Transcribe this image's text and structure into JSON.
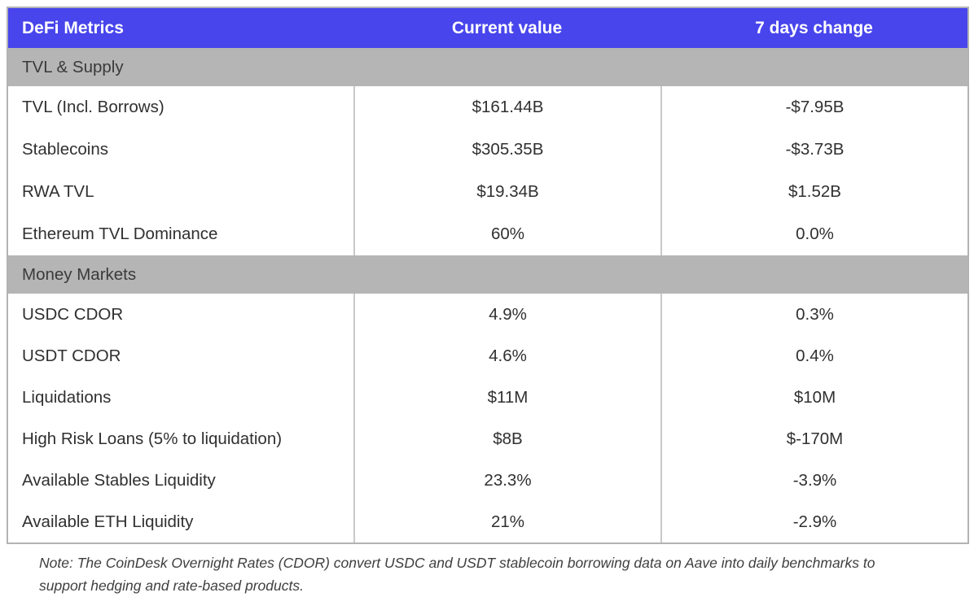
{
  "colors": {
    "header_bg": "#4845ec",
    "header_text": "#ffffff",
    "section_bg": "#b5b5b5",
    "row_text": "#303030",
    "column_divider": "#c9c9c9",
    "outer_border": "#b3b3b3"
  },
  "table": {
    "header": {
      "metric": "DeFi Metrics",
      "current": "Current value",
      "change": "7 days change"
    },
    "sections": [
      {
        "title": "TVL & Supply",
        "rows": [
          {
            "label": "TVL (Incl. Borrows)",
            "current": "$161.44B",
            "change": "-$7.95B"
          },
          {
            "label": "Stablecoins",
            "current": "$305.35B",
            "change": "-$3.73B"
          },
          {
            "label": "RWA TVL",
            "current": "$19.34B",
            "change": "$1.52B"
          },
          {
            "label": "Ethereum TVL Dominance",
            "current": "60%",
            "change": "0.0%"
          }
        ]
      },
      {
        "title": "Money Markets",
        "rows": [
          {
            "label": "USDC CDOR",
            "current": "4.9%",
            "change": "0.3%"
          },
          {
            "label": "USDT CDOR",
            "current": "4.6%",
            "change": "0.4%"
          },
          {
            "label": "Liquidations",
            "current": "$11M",
            "change": "$10M"
          },
          {
            "label": "High Risk Loans (5% to liquidation)",
            "current": "$8B",
            "change": "$-170M"
          },
          {
            "label": "Available Stables Liquidity",
            "current": "23.3%",
            "change": "-3.9%"
          },
          {
            "label": "Available ETH Liquidity",
            "current": "21%",
            "change": "-2.9%"
          }
        ]
      }
    ]
  },
  "note": "Note: The CoinDesk Overnight Rates (CDOR) convert USDC and USDT stablecoin borrowing data on Aave into daily benchmarks to support hedging and rate-based products.",
  "chart_data": {
    "type": "table",
    "title": "DeFi Metrics",
    "columns": [
      "DeFi Metrics",
      "Current value",
      "7 days change"
    ],
    "sections": [
      {
        "section": "TVL & Supply",
        "rows": [
          [
            "TVL (Incl. Borrows)",
            "$161.44B",
            "-$7.95B"
          ],
          [
            "Stablecoins",
            "$305.35B",
            "-$3.73B"
          ],
          [
            "RWA TVL",
            "$19.34B",
            "$1.52B"
          ],
          [
            "Ethereum TVL Dominance",
            "60%",
            "0.0%"
          ]
        ]
      },
      {
        "section": "Money Markets",
        "rows": [
          [
            "USDC CDOR",
            "4.9%",
            "0.3%"
          ],
          [
            "USDT CDOR",
            "4.6%",
            "0.4%"
          ],
          [
            "Liquidations",
            "$11M",
            "$10M"
          ],
          [
            "High Risk Loans (5% to liquidation)",
            "$8B",
            "$-170M"
          ],
          [
            "Available Stables Liquidity",
            "23.3%",
            "-3.9%"
          ],
          [
            "Available ETH Liquidity",
            "21%",
            "-2.9%"
          ]
        ]
      }
    ],
    "annotations": [
      "Note: The CoinDesk Overnight Rates (CDOR) convert USDC and USDT stablecoin borrowing data on Aave into daily benchmarks to support hedging and rate-based products."
    ]
  }
}
